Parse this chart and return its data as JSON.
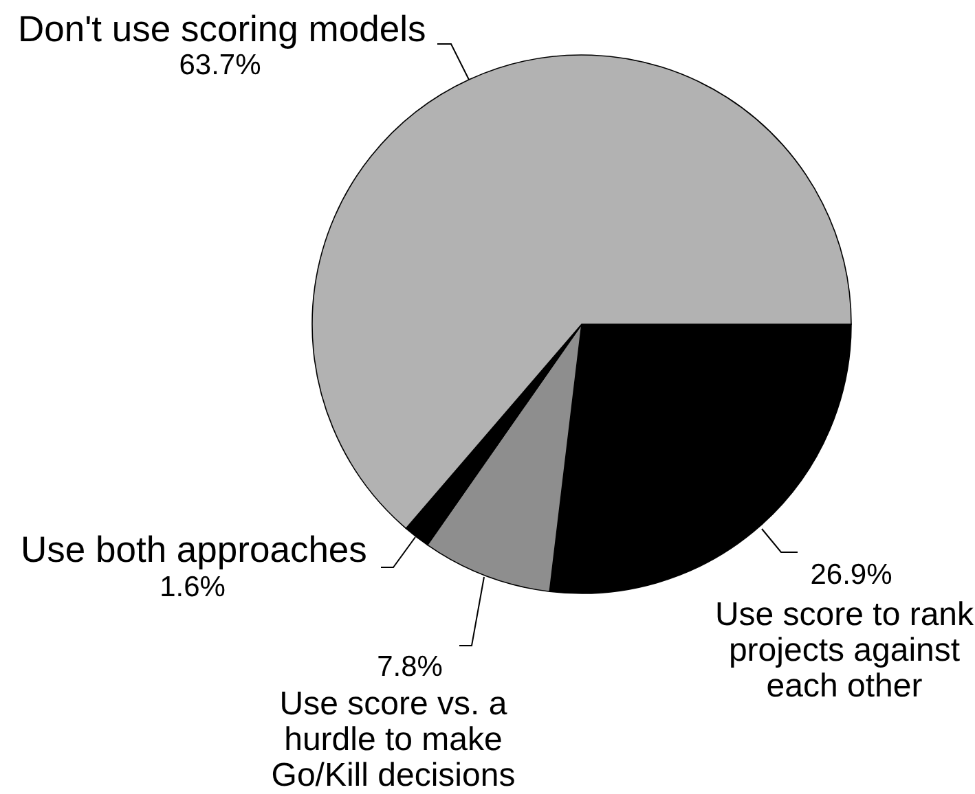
{
  "chart_data": {
    "type": "pie",
    "categories": [
      "Use score to rank projects against each other",
      "Use score vs. a hurdle to make Go/Kill decisions",
      "Use both approaches",
      "Don't use scoring models"
    ],
    "values": [
      26.9,
      7.8,
      1.6,
      63.7
    ],
    "value_labels": [
      "26.9%",
      "7.8%",
      "1.6%",
      "63.7%"
    ],
    "colors": [
      "#000000",
      "#8e8e8e",
      "#000000",
      "#b2b2b2"
    ]
  }
}
